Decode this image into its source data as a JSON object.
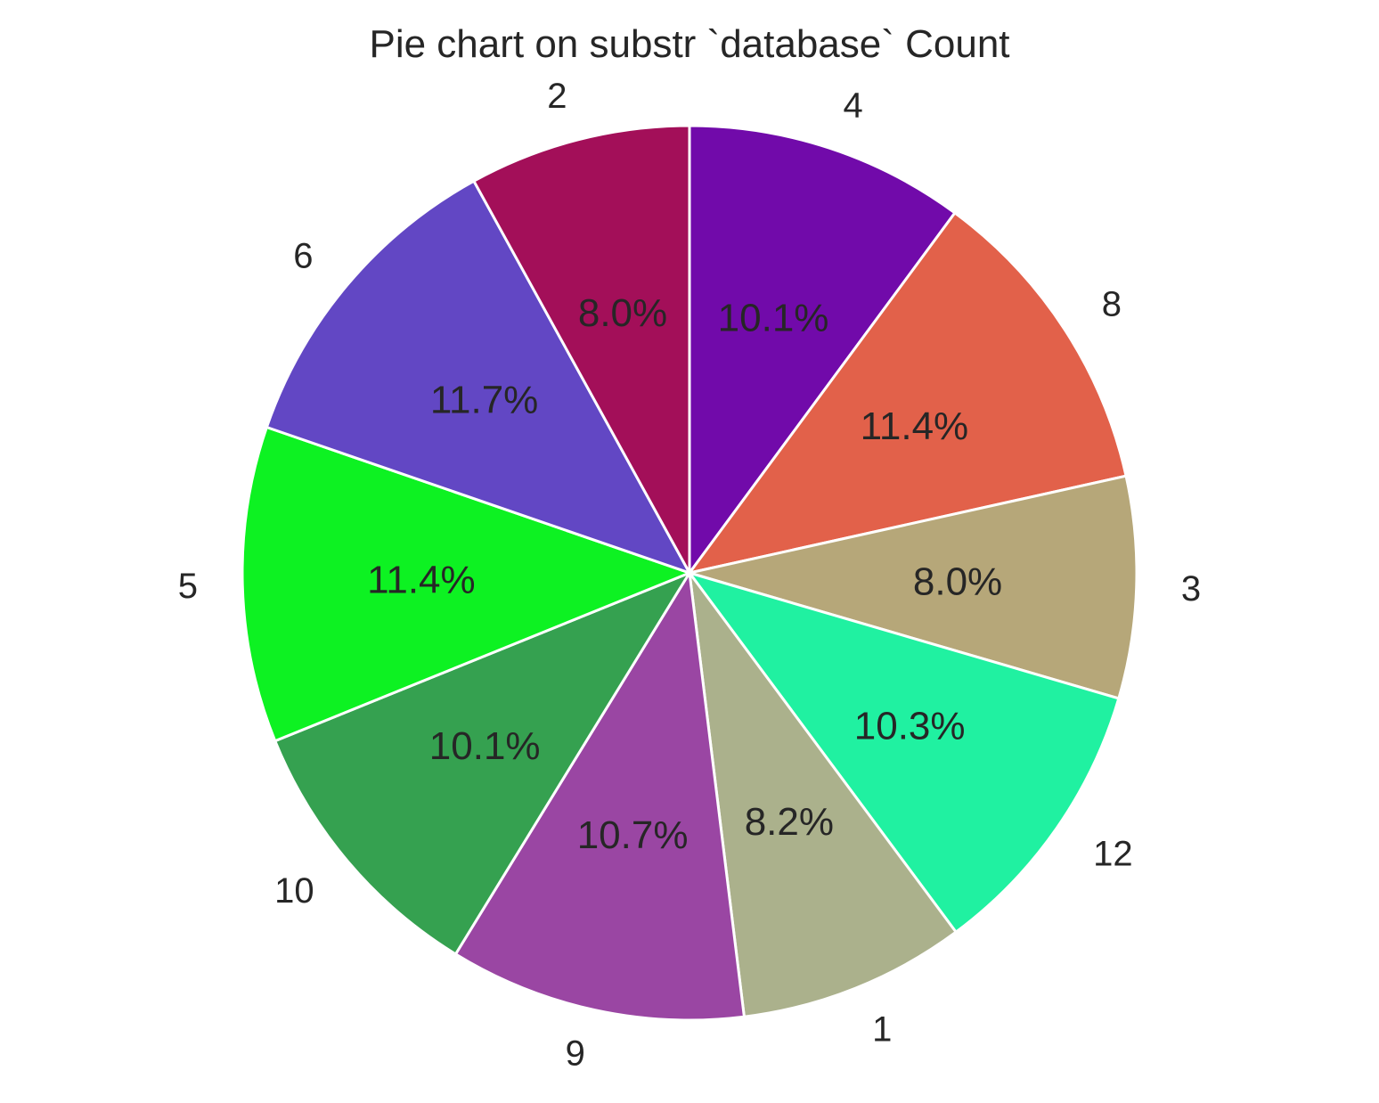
{
  "chart_data": {
    "type": "pie",
    "title": "Pie chart on substr `database` Count",
    "start_angle_deg": 90,
    "direction": "clockwise",
    "slices": [
      {
        "label": "4",
        "percent_label": "10.1%",
        "value": 10.1,
        "color": "#710aaa"
      },
      {
        "label": "8",
        "percent_label": "11.4%",
        "value": 11.4,
        "color": "#e2614a"
      },
      {
        "label": "3",
        "percent_label": "8.0%",
        "value": 8.0,
        "color": "#b6a779"
      },
      {
        "label": "12",
        "percent_label": "10.3%",
        "value": 10.3,
        "color": "#20f1a1"
      },
      {
        "label": "1",
        "percent_label": "8.2%",
        "value": 8.2,
        "color": "#abb18c"
      },
      {
        "label": "9",
        "percent_label": "10.7%",
        "value": 10.7,
        "color": "#9a46a3"
      },
      {
        "label": "10",
        "percent_label": "10.1%",
        "value": 10.1,
        "color": "#35a150"
      },
      {
        "label": "5",
        "percent_label": "11.4%",
        "value": 11.4,
        "color": "#0df222"
      },
      {
        "label": "6",
        "percent_label": "11.7%",
        "value": 11.7,
        "color": "#6247c4"
      },
      {
        "label": "2",
        "percent_label": "8.0%",
        "value": 8.0,
        "color": "#a30f59"
      }
    ]
  }
}
